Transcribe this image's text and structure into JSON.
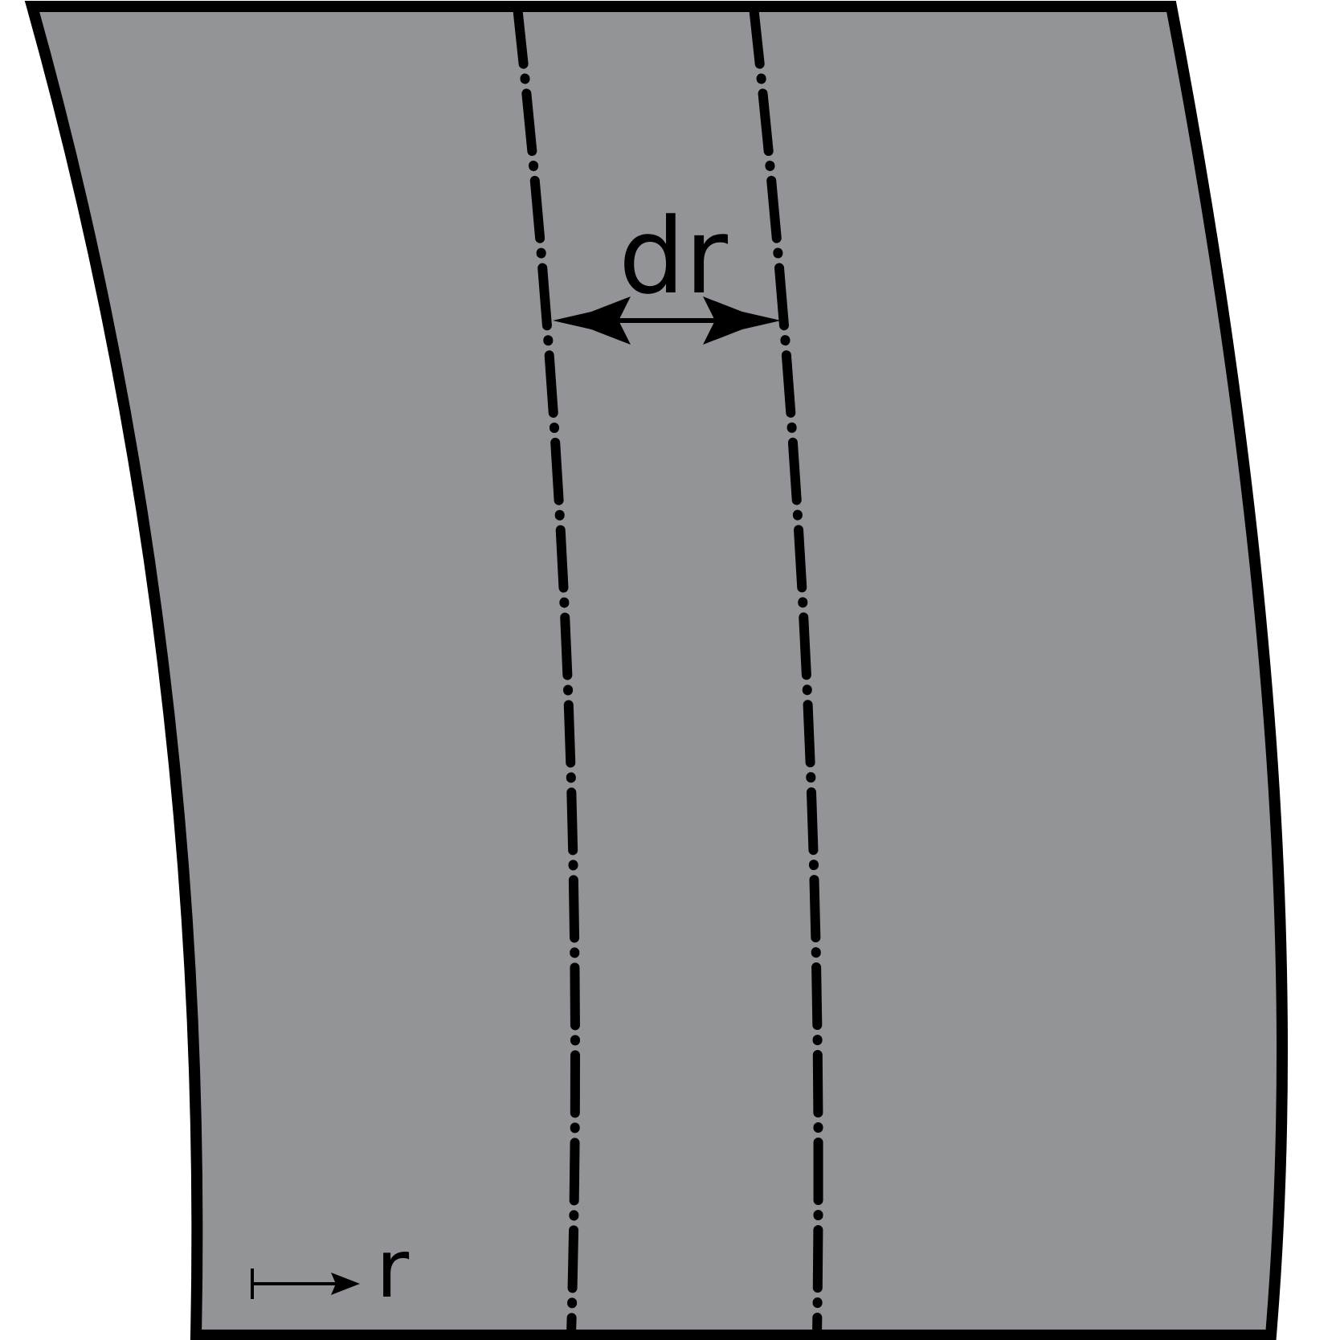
{
  "colors": {
    "band_fill": "#939498",
    "stroke": "#000000",
    "background": "#ffffff"
  },
  "diagram": {
    "width_label": "dr",
    "axis_label": "r"
  }
}
